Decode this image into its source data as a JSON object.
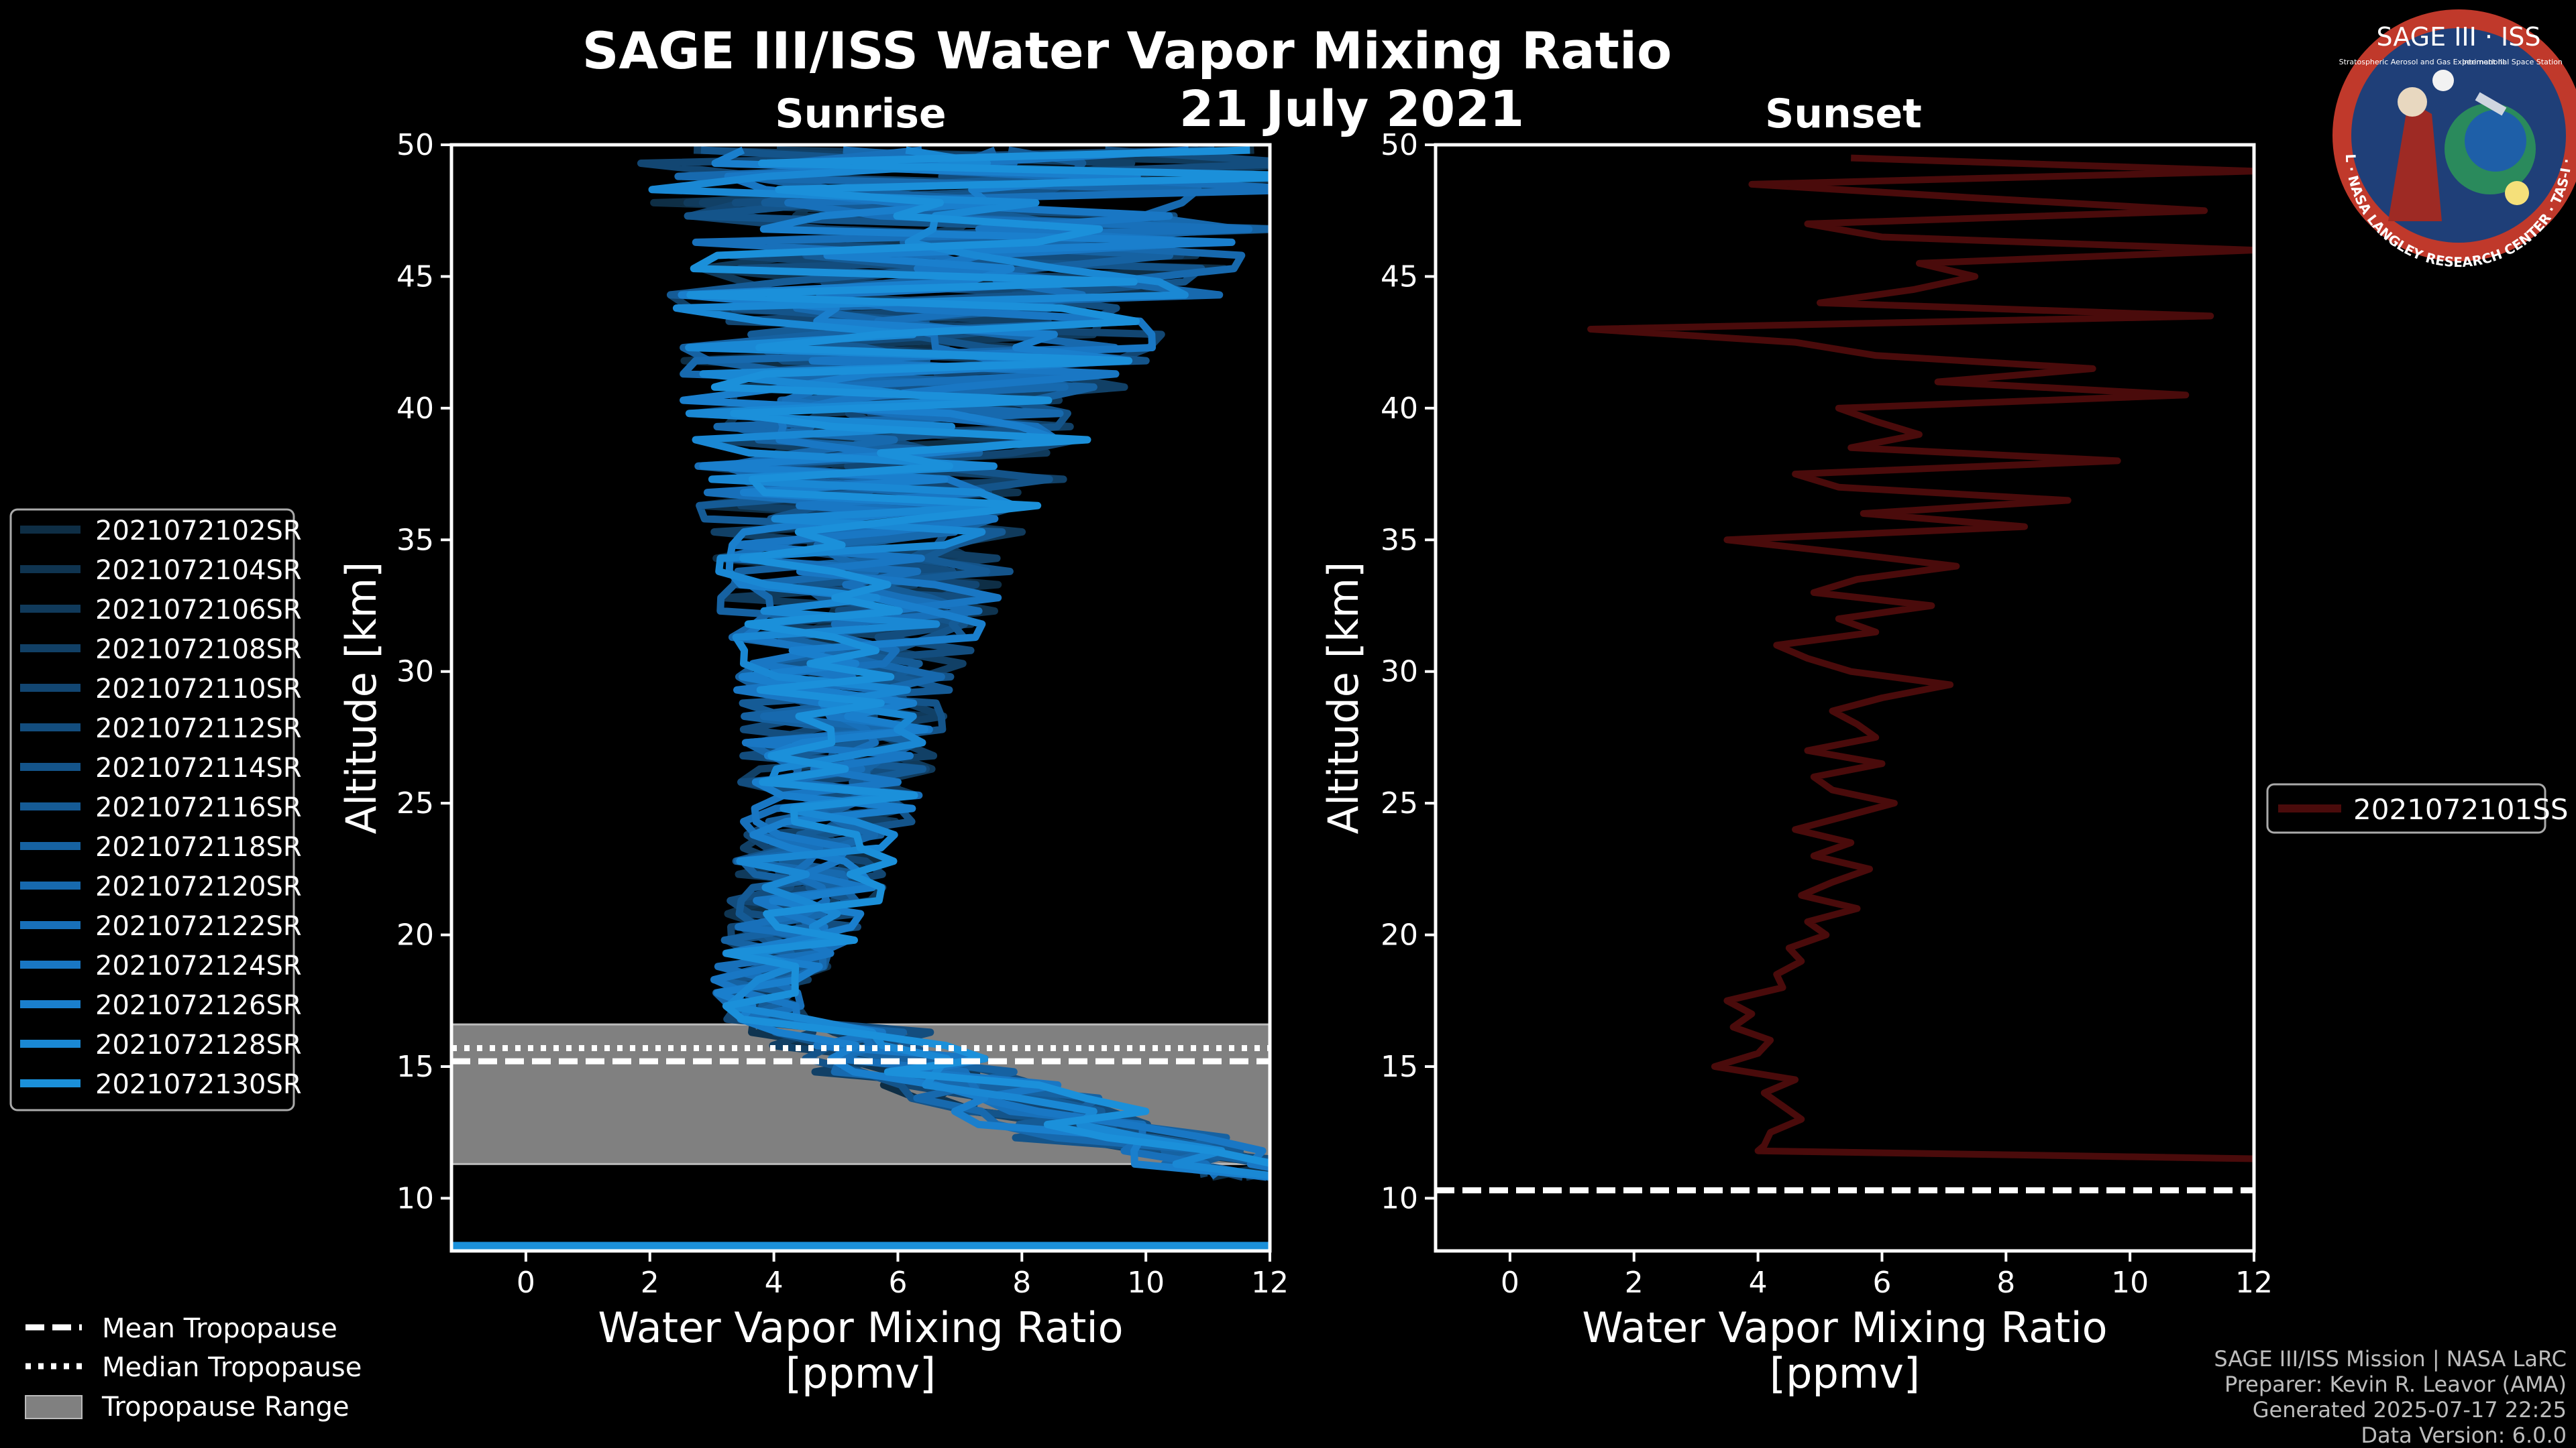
{
  "figure": {
    "title": "SAGE III/ISS Water Vapor Mixing Ratio",
    "date": "21 July 2021",
    "credits": [
      "SAGE III/ISS Mission | NASA LaRC",
      "Preparer: Kevin R. Leavor (AMA)",
      "Generated 2025-07-17 22:25",
      "Data Version: 6.0.0"
    ],
    "logo": {
      "title": "SAGE III · ISS",
      "subtitle_left": "Stratospheric Aerosol and Gas Experiment III",
      "subtitle_right": "International Space Station",
      "ring_text": "BALL · NASA LANGLEY RESEARCH CENTER · TAS-I · ESA"
    },
    "colors": {
      "background": "#000000",
      "sunrise_line": "#1a8fd0",
      "sunset_line": "#4a0b0b",
      "tropopause_range": "#808080",
      "logo_ring": "#c0392b",
      "logo_bg": "#1f3f78"
    }
  },
  "chart_data": [
    {
      "id": "sunrise",
      "type": "line",
      "subtitle": "Sunrise",
      "xlabel_line1": "Water Vapor Mixing Ratio",
      "xlabel_line2": "[ppmv]",
      "ylabel": "Altitude [km]",
      "xlim": [
        -1.2,
        12
      ],
      "ylim": [
        8,
        50
      ],
      "xticks": [
        "0",
        "2",
        "4",
        "6",
        "8",
        "10",
        "12"
      ],
      "yticks": [
        "10",
        "15",
        "20",
        "25",
        "30",
        "35",
        "40",
        "45",
        "50"
      ],
      "series_names": [
        "2021072102SR",
        "2021072104SR",
        "2021072106SR",
        "2021072108SR",
        "2021072110SR",
        "2021072112SR",
        "2021072114SR",
        "2021072116SR",
        "2021072118SR",
        "2021072120SR",
        "2021072122SR",
        "2021072124SR",
        "2021072126SR",
        "2021072128SR",
        "2021072130SR"
      ],
      "series_colors": [
        "#0e2e45",
        "#0f3450",
        "#103a5b",
        "#114066",
        "#124672",
        "#134d7e",
        "#14548a",
        "#155b96",
        "#1662a2",
        "#1769ae",
        "#1870ba",
        "#1977c4",
        "#1a7fcd",
        "#1a88d4",
        "#1b90da"
      ],
      "profile_shape": {
        "altitude_km": [
          8.2,
          11,
          12,
          13,
          14,
          15,
          16,
          17,
          18,
          19,
          20,
          22,
          24,
          26,
          28,
          30,
          32,
          34,
          36,
          38,
          40,
          42,
          44,
          46,
          48,
          50
        ],
        "mean_ppmv": [
          12,
          11.5,
          9.5,
          8,
          6.8,
          5.5,
          4.4,
          3.8,
          3.6,
          4.0,
          4.3,
          4.6,
          4.8,
          5.0,
          5.1,
          5.2,
          5.4,
          5.5,
          5.6,
          5.8,
          6.0,
          6.3,
          6.6,
          7.0,
          7.5,
          8.0
        ],
        "spread_ppmv": [
          0.3,
          1.0,
          1.2,
          1.2,
          1.0,
          0.8,
          0.5,
          0.5,
          0.6,
          0.7,
          0.8,
          0.9,
          1.0,
          1.1,
          1.2,
          1.3,
          1.6,
          1.8,
          2.0,
          2.2,
          2.5,
          2.8,
          3.2,
          3.6,
          4.0,
          4.5
        ]
      },
      "tropopause": {
        "mean_km": 15.2,
        "median_km": 15.7,
        "range_km": [
          11.3,
          16.6
        ]
      },
      "legend_position": "left"
    },
    {
      "id": "sunset",
      "type": "line",
      "subtitle": "Sunset",
      "xlabel_line1": "Water Vapor Mixing Ratio",
      "xlabel_line2": "[ppmv]",
      "ylabel": "Altitude [km]",
      "xlim": [
        -1.2,
        12
      ],
      "ylim": [
        8,
        50
      ],
      "xticks": [
        "0",
        "2",
        "4",
        "6",
        "8",
        "10",
        "12"
      ],
      "yticks": [
        "10",
        "15",
        "20",
        "25",
        "30",
        "35",
        "40",
        "45",
        "50"
      ],
      "series": [
        {
          "name": "2021072101SS",
          "altitude_km": [
            11.5,
            11.8,
            12.0,
            12.5,
            13.0,
            13.5,
            14.0,
            14.5,
            15.0,
            15.5,
            16.0,
            16.5,
            17.0,
            17.5,
            18.0,
            18.5,
            19.0,
            19.5,
            20.0,
            20.5,
            21.0,
            21.5,
            22.0,
            22.5,
            23.0,
            23.5,
            24.0,
            24.5,
            25.0,
            25.5,
            26.0,
            26.5,
            27.0,
            27.5,
            28.0,
            28.5,
            29.0,
            29.5,
            30.0,
            30.5,
            31.0,
            31.5,
            32.0,
            32.5,
            33.0,
            33.5,
            34.0,
            34.5,
            35.0,
            35.5,
            36.0,
            36.5,
            37.0,
            37.5,
            38.0,
            38.5,
            39.0,
            39.5,
            40.0,
            40.5,
            41.0,
            41.5,
            42.0,
            42.5,
            43.0,
            43.5,
            44.0,
            44.5,
            45.0,
            45.5,
            46.0,
            46.5,
            47.0,
            47.5,
            48.0,
            48.5,
            49.0,
            49.5
          ],
          "ppmv": [
            12.0,
            4.0,
            4.1,
            4.2,
            4.7,
            4.4,
            4.1,
            4.6,
            3.3,
            4.0,
            4.2,
            3.6,
            3.9,
            3.5,
            4.4,
            4.3,
            4.7,
            4.5,
            5.1,
            4.8,
            5.6,
            4.7,
            5.2,
            5.8,
            4.9,
            5.5,
            4.6,
            5.4,
            6.2,
            5.2,
            4.9,
            6.0,
            4.8,
            5.9,
            5.6,
            5.2,
            6.0,
            7.1,
            5.5,
            4.8,
            4.3,
            5.9,
            5.3,
            6.8,
            4.9,
            5.6,
            7.2,
            5.4,
            3.5,
            8.3,
            5.7,
            9.0,
            5.3,
            4.6,
            9.8,
            5.5,
            6.6,
            5.9,
            5.3,
            10.9,
            6.9,
            9.4,
            5.9,
            4.6,
            1.3,
            11.3,
            5.0,
            6.5,
            7.5,
            6.6,
            12.0,
            6.0,
            4.8,
            11.2,
            7.4,
            3.9,
            12.0,
            5.5
          ]
        }
      ],
      "tropopause": {
        "mean_km": 10.3
      },
      "legend_position": "right"
    }
  ],
  "tropopause_legend": {
    "mean": "Mean Tropopause",
    "median": "Median Tropopause",
    "range": "Tropopause Range"
  }
}
